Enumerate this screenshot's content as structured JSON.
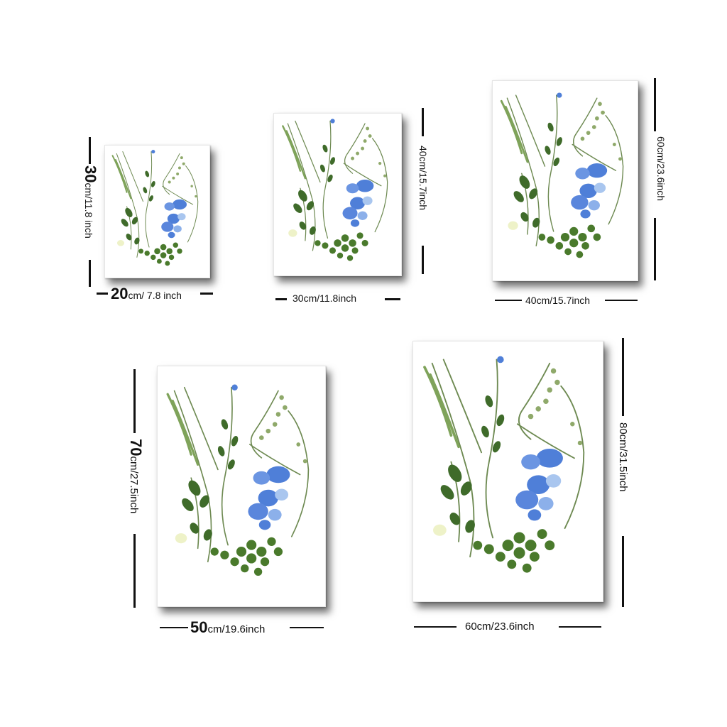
{
  "sizes": [
    {
      "width_num": "20",
      "width_unit": "cm/ 7.8 inch",
      "height_num": "30",
      "height_unit": "cm/11.8 inch"
    },
    {
      "width_label": "30cm/11.8inch",
      "height_label": "40cm/15.7inch"
    },
    {
      "width_label": "40cm/15.7inch",
      "height_label": "60cm/23.6inch"
    },
    {
      "width_num": "50",
      "width_unit": "cm/19.6inch",
      "height_num": "70",
      "height_unit": "cm/27.5inch"
    },
    {
      "width_label": "60cm/23.6inch",
      "height_label": "80cm/31.5inch"
    }
  ],
  "colors": {
    "leaf_dark": "#3f6b2a",
    "leaf_light": "#7fa35a",
    "flower_blue": "#4f7fd8",
    "flower_light": "#a9c6ef",
    "stem": "#6e8a52"
  },
  "artwork_icon": "pressed-botanical-torso-icon"
}
